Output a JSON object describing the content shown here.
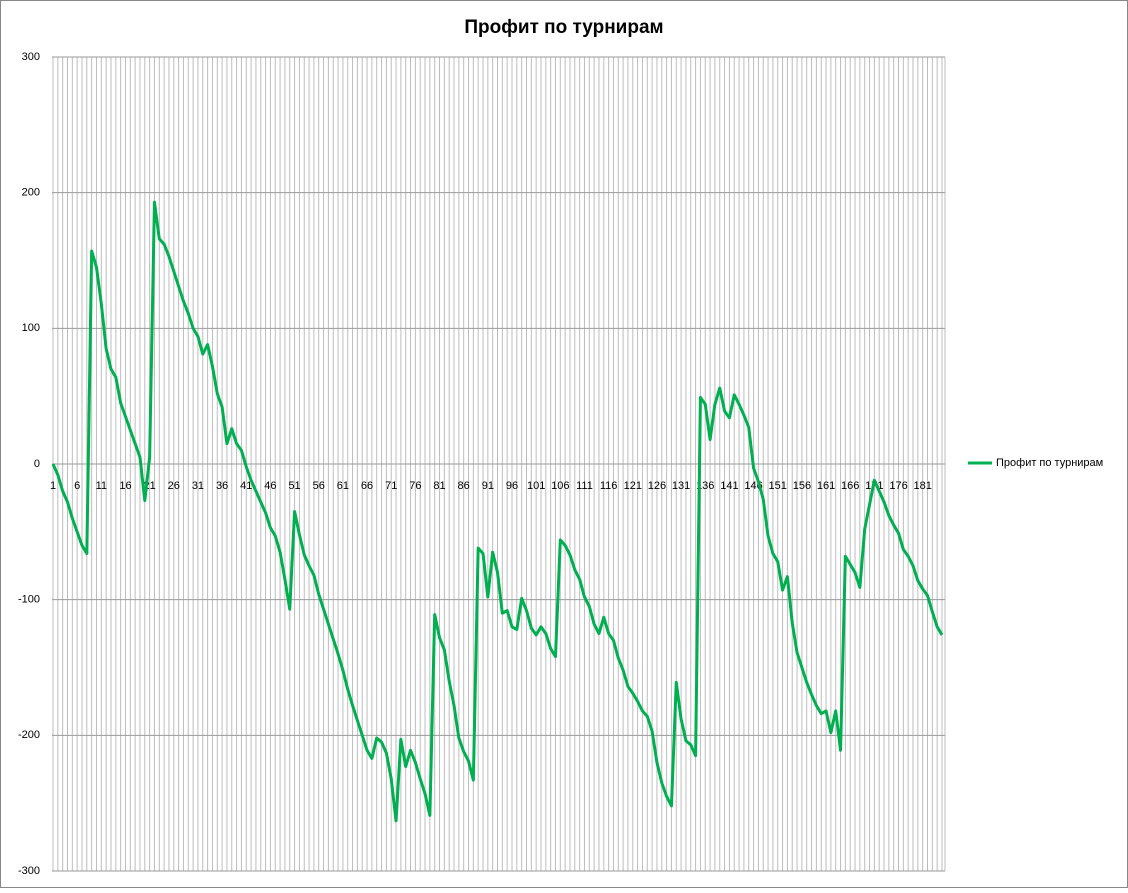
{
  "chart_data": {
    "type": "line",
    "title": "Профит по турнирам",
    "categories": [
      "1",
      null,
      null,
      null,
      null,
      "6",
      null,
      null,
      null,
      null,
      "11",
      null,
      null,
      null,
      null,
      "16",
      null,
      null,
      null,
      null,
      "21",
      null,
      null,
      null,
      null,
      "26",
      null,
      null,
      null,
      null,
      "31",
      null,
      null,
      null,
      null,
      "36",
      null,
      null,
      null,
      null,
      "41",
      null,
      null,
      null,
      null,
      "46",
      null,
      null,
      null,
      null,
      "51",
      null,
      null,
      null,
      null,
      "56",
      null,
      null,
      null,
      null,
      "61",
      null,
      null,
      null,
      null,
      "66",
      null,
      null,
      null,
      null,
      "71",
      null,
      null,
      null,
      null,
      "76",
      null,
      null,
      null,
      null,
      "81",
      null,
      null,
      null,
      null,
      "86",
      null,
      null,
      null,
      null,
      "91",
      null,
      null,
      null,
      null,
      "96",
      null,
      null,
      null,
      null,
      "101",
      null,
      null,
      null,
      null,
      "106",
      null,
      null,
      null,
      null,
      "111",
      null,
      null,
      null,
      null,
      "116",
      null,
      null,
      null,
      null,
      "121",
      null,
      null,
      null,
      null,
      "126",
      null,
      null,
      null,
      null,
      "131",
      null,
      null,
      null,
      null,
      "136",
      null,
      null,
      null,
      null,
      "141",
      null,
      null,
      null,
      null,
      "146",
      null,
      null,
      null,
      null,
      "151",
      null,
      null,
      null,
      null,
      "156",
      null,
      null,
      null,
      null,
      "161",
      null,
      null,
      null,
      null,
      "166",
      null,
      null,
      null,
      null,
      "171",
      null,
      null,
      null,
      null,
      "176",
      null,
      null,
      null,
      null,
      "181",
      null,
      null,
      null,
      null
    ],
    "series": [
      {
        "name": "Профит по турнирам",
        "color": "#00b050",
        "values": [
          0,
          -8,
          -20,
          -28,
          -40,
          -50,
          -60,
          -66,
          157,
          145,
          118,
          85,
          70,
          64,
          45,
          35,
          25,
          15,
          5,
          -27,
          5,
          193,
          166,
          162,
          153,
          142,
          131,
          120,
          111,
          100,
          94,
          81,
          88,
          72,
          52,
          42,
          15,
          26,
          15,
          10,
          -2,
          -12,
          -20,
          -28,
          -36,
          -47,
          -53,
          -65,
          -85,
          -107,
          -35,
          -52,
          -67,
          -75,
          -82,
          -96,
          -107,
          -118,
          -129,
          -140,
          -152,
          -166,
          -178,
          -189,
          -200,
          -211,
          -217,
          -202,
          -205,
          -213,
          -232,
          -263,
          -203,
          -223,
          -211,
          -220,
          -232,
          -243,
          -259,
          -111,
          -128,
          -137,
          -160,
          -178,
          -202,
          -212,
          -219,
          -233,
          -62,
          -66,
          -98,
          -65,
          -80,
          -110,
          -108,
          -120,
          -122,
          -99,
          -108,
          -121,
          -126,
          -120,
          -125,
          -136,
          -142,
          -56,
          -60,
          -67,
          -78,
          -85,
          -98,
          -105,
          -118,
          -125,
          -113,
          -125,
          -130,
          -143,
          -152,
          -164,
          -169,
          -175,
          -182,
          -186,
          -197,
          -220,
          -235,
          -245,
          -252,
          -161,
          -188,
          -204,
          -207,
          -215,
          49,
          44,
          18,
          44,
          56,
          39,
          34,
          51,
          44,
          36,
          27,
          -3,
          -13,
          -26,
          -53,
          -66,
          -72,
          -93,
          -83,
          -117,
          -139,
          -150,
          -161,
          -170,
          -178,
          -184,
          -182,
          -198,
          -182,
          -211,
          -68,
          -74,
          -80,
          -91,
          -48,
          -30,
          -12,
          -20,
          -28,
          -38,
          -45,
          -51,
          -63,
          -68,
          -75,
          -86,
          -92,
          -97,
          -109,
          -120,
          -126
        ]
      }
    ],
    "ylim": [
      -300,
      300
    ],
    "yticks": [
      -300,
      -200,
      -100,
      0,
      100,
      200,
      300
    ],
    "grid": true,
    "legend": "right"
  }
}
